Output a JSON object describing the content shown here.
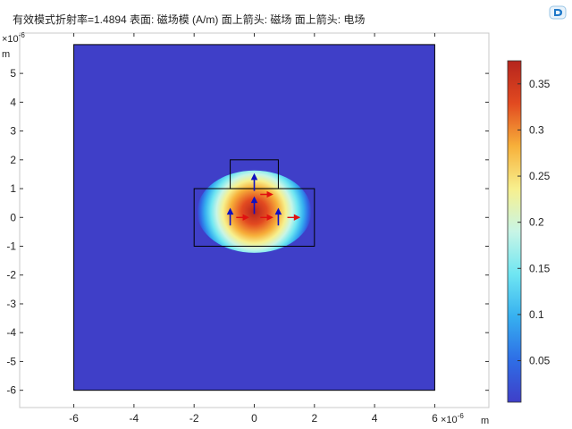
{
  "header": {
    "title": "有效模式折射率=1.4894   表面: 磁场模 (A/m)   面上箭头: 磁场   面上箭头: 电场",
    "logo_icon": "comsol-logo-icon"
  },
  "chart_data": {
    "type": "heatmap",
    "title": "有效模式折射率=1.4894   表面: 磁场模 (A/m)   面上箭头: 磁场   面上箭头: 电场",
    "quantity": "磁场模 (A/m)",
    "x_axis": {
      "range": [
        -7.8,
        7.8
      ],
      "ticks": [
        -6,
        -4,
        -2,
        0,
        2,
        4,
        6
      ],
      "tick_labels": [
        "-6",
        "-4",
        "-2",
        "0",
        "2",
        "4",
        "6"
      ],
      "multiplier": "×10",
      "exponent": "-6",
      "unit": "m"
    },
    "y_axis": {
      "range": [
        -6.6,
        6.4
      ],
      "ticks": [
        -6,
        -5,
        -4,
        -3,
        -2,
        -1,
        0,
        1,
        2,
        3,
        4,
        5
      ],
      "tick_labels": [
        "-6",
        "-5",
        "-4",
        "-3",
        "-2",
        "-1",
        "0",
        "1",
        "2",
        "3",
        "4",
        "5"
      ],
      "multiplier": "×10",
      "exponent": "-6",
      "unit": "m"
    },
    "domain_box": {
      "x": [
        -6,
        6
      ],
      "y": [
        -6,
        6
      ]
    },
    "waveguide_outline": [
      {
        "x": [
          -2,
          2
        ],
        "y": [
          -1,
          1
        ]
      },
      {
        "x": [
          -0.8,
          0.8
        ],
        "y": [
          1,
          2
        ]
      }
    ],
    "field_peak": {
      "x": 0,
      "y": 0.2,
      "value": 0.375
    },
    "colorbar": {
      "range": [
        0.005,
        0.375
      ],
      "ticks": [
        0.05,
        0.1,
        0.15,
        0.2,
        0.25,
        0.3,
        0.35
      ],
      "tick_labels": [
        "0.05",
        "0.1",
        "0.15",
        "0.2",
        "0.25",
        "0.3",
        "0.35"
      ],
      "colormap": [
        "#3f3fc8",
        "#2e6ee6",
        "#36b0f0",
        "#6fe6f2",
        "#c8f5e6",
        "#f7f08e",
        "#f7b03a",
        "#e24a20",
        "#b5241d"
      ]
    },
    "arrows": {
      "magnetic_field": {
        "color": "#1010c0",
        "points": [
          [
            0,
            1.2
          ],
          [
            0,
            0.4
          ],
          [
            -0.8,
            0
          ],
          [
            0.8,
            0
          ]
        ]
      },
      "electric_field": {
        "color": "#e01010",
        "points": [
          [
            -0.6,
            0
          ],
          [
            0.2,
            0
          ],
          [
            0.2,
            0.8
          ],
          [
            1.1,
            0
          ]
        ]
      }
    }
  }
}
